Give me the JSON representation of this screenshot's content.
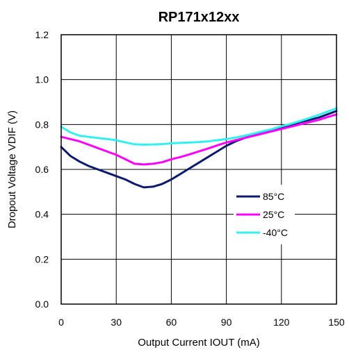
{
  "chart_data": {
    "type": "line",
    "title": "RP171x12xx",
    "xlabel": "Output Current IOUT (mA)",
    "ylabel": "Dropout Voltage VDIF (V)",
    "xlim": [
      0,
      150
    ],
    "ylim": [
      0.0,
      1.2
    ],
    "xticks": [
      0,
      30,
      60,
      90,
      120,
      150
    ],
    "yticks": [
      0.0,
      0.2,
      0.4,
      0.6,
      0.8,
      1.0,
      1.2
    ],
    "xtick_labels": [
      "0",
      "30",
      "60",
      "90",
      "120",
      "150"
    ],
    "ytick_labels": [
      "0.0",
      "0.2",
      "0.4",
      "0.6",
      "0.8",
      "1.0",
      "1.2"
    ],
    "grid": true,
    "legend_position": "center-right",
    "series": [
      {
        "name": "85°C",
        "color": "#0b1a6e",
        "x": [
          0,
          5,
          10,
          15,
          20,
          25,
          30,
          35,
          40,
          45,
          50,
          55,
          60,
          65,
          70,
          75,
          80,
          85,
          90,
          95,
          100,
          105,
          110,
          115,
          120,
          125,
          130,
          135,
          140,
          145,
          150
        ],
        "y": [
          0.7,
          0.66,
          0.635,
          0.615,
          0.6,
          0.585,
          0.57,
          0.555,
          0.535,
          0.52,
          0.523,
          0.535,
          0.555,
          0.58,
          0.605,
          0.63,
          0.655,
          0.68,
          0.705,
          0.725,
          0.74,
          0.755,
          0.765,
          0.775,
          0.785,
          0.795,
          0.81,
          0.82,
          0.83,
          0.845,
          0.86
        ]
      },
      {
        "name": "25°C",
        "color": "#ff00ff",
        "x": [
          0,
          5,
          10,
          15,
          20,
          25,
          30,
          35,
          40,
          45,
          50,
          55,
          60,
          65,
          70,
          75,
          80,
          85,
          90,
          95,
          100,
          105,
          110,
          115,
          120,
          125,
          130,
          135,
          140,
          145,
          150
        ],
        "y": [
          0.745,
          0.735,
          0.725,
          0.71,
          0.695,
          0.68,
          0.665,
          0.645,
          0.625,
          0.622,
          0.625,
          0.632,
          0.645,
          0.655,
          0.667,
          0.68,
          0.693,
          0.707,
          0.72,
          0.73,
          0.74,
          0.75,
          0.76,
          0.77,
          0.78,
          0.79,
          0.8,
          0.81,
          0.82,
          0.833,
          0.845
        ]
      },
      {
        "name": "-40°C",
        "color": "#33f0f0",
        "x": [
          0,
          5,
          10,
          15,
          20,
          25,
          30,
          35,
          40,
          45,
          50,
          55,
          60,
          65,
          70,
          75,
          80,
          85,
          90,
          95,
          100,
          105,
          110,
          115,
          120,
          125,
          130,
          135,
          140,
          145,
          150
        ],
        "y": [
          0.79,
          0.765,
          0.75,
          0.745,
          0.74,
          0.735,
          0.73,
          0.72,
          0.712,
          0.71,
          0.711,
          0.713,
          0.716,
          0.718,
          0.72,
          0.722,
          0.725,
          0.73,
          0.735,
          0.742,
          0.75,
          0.76,
          0.77,
          0.78,
          0.792,
          0.803,
          0.815,
          0.828,
          0.842,
          0.857,
          0.872
        ]
      }
    ]
  }
}
